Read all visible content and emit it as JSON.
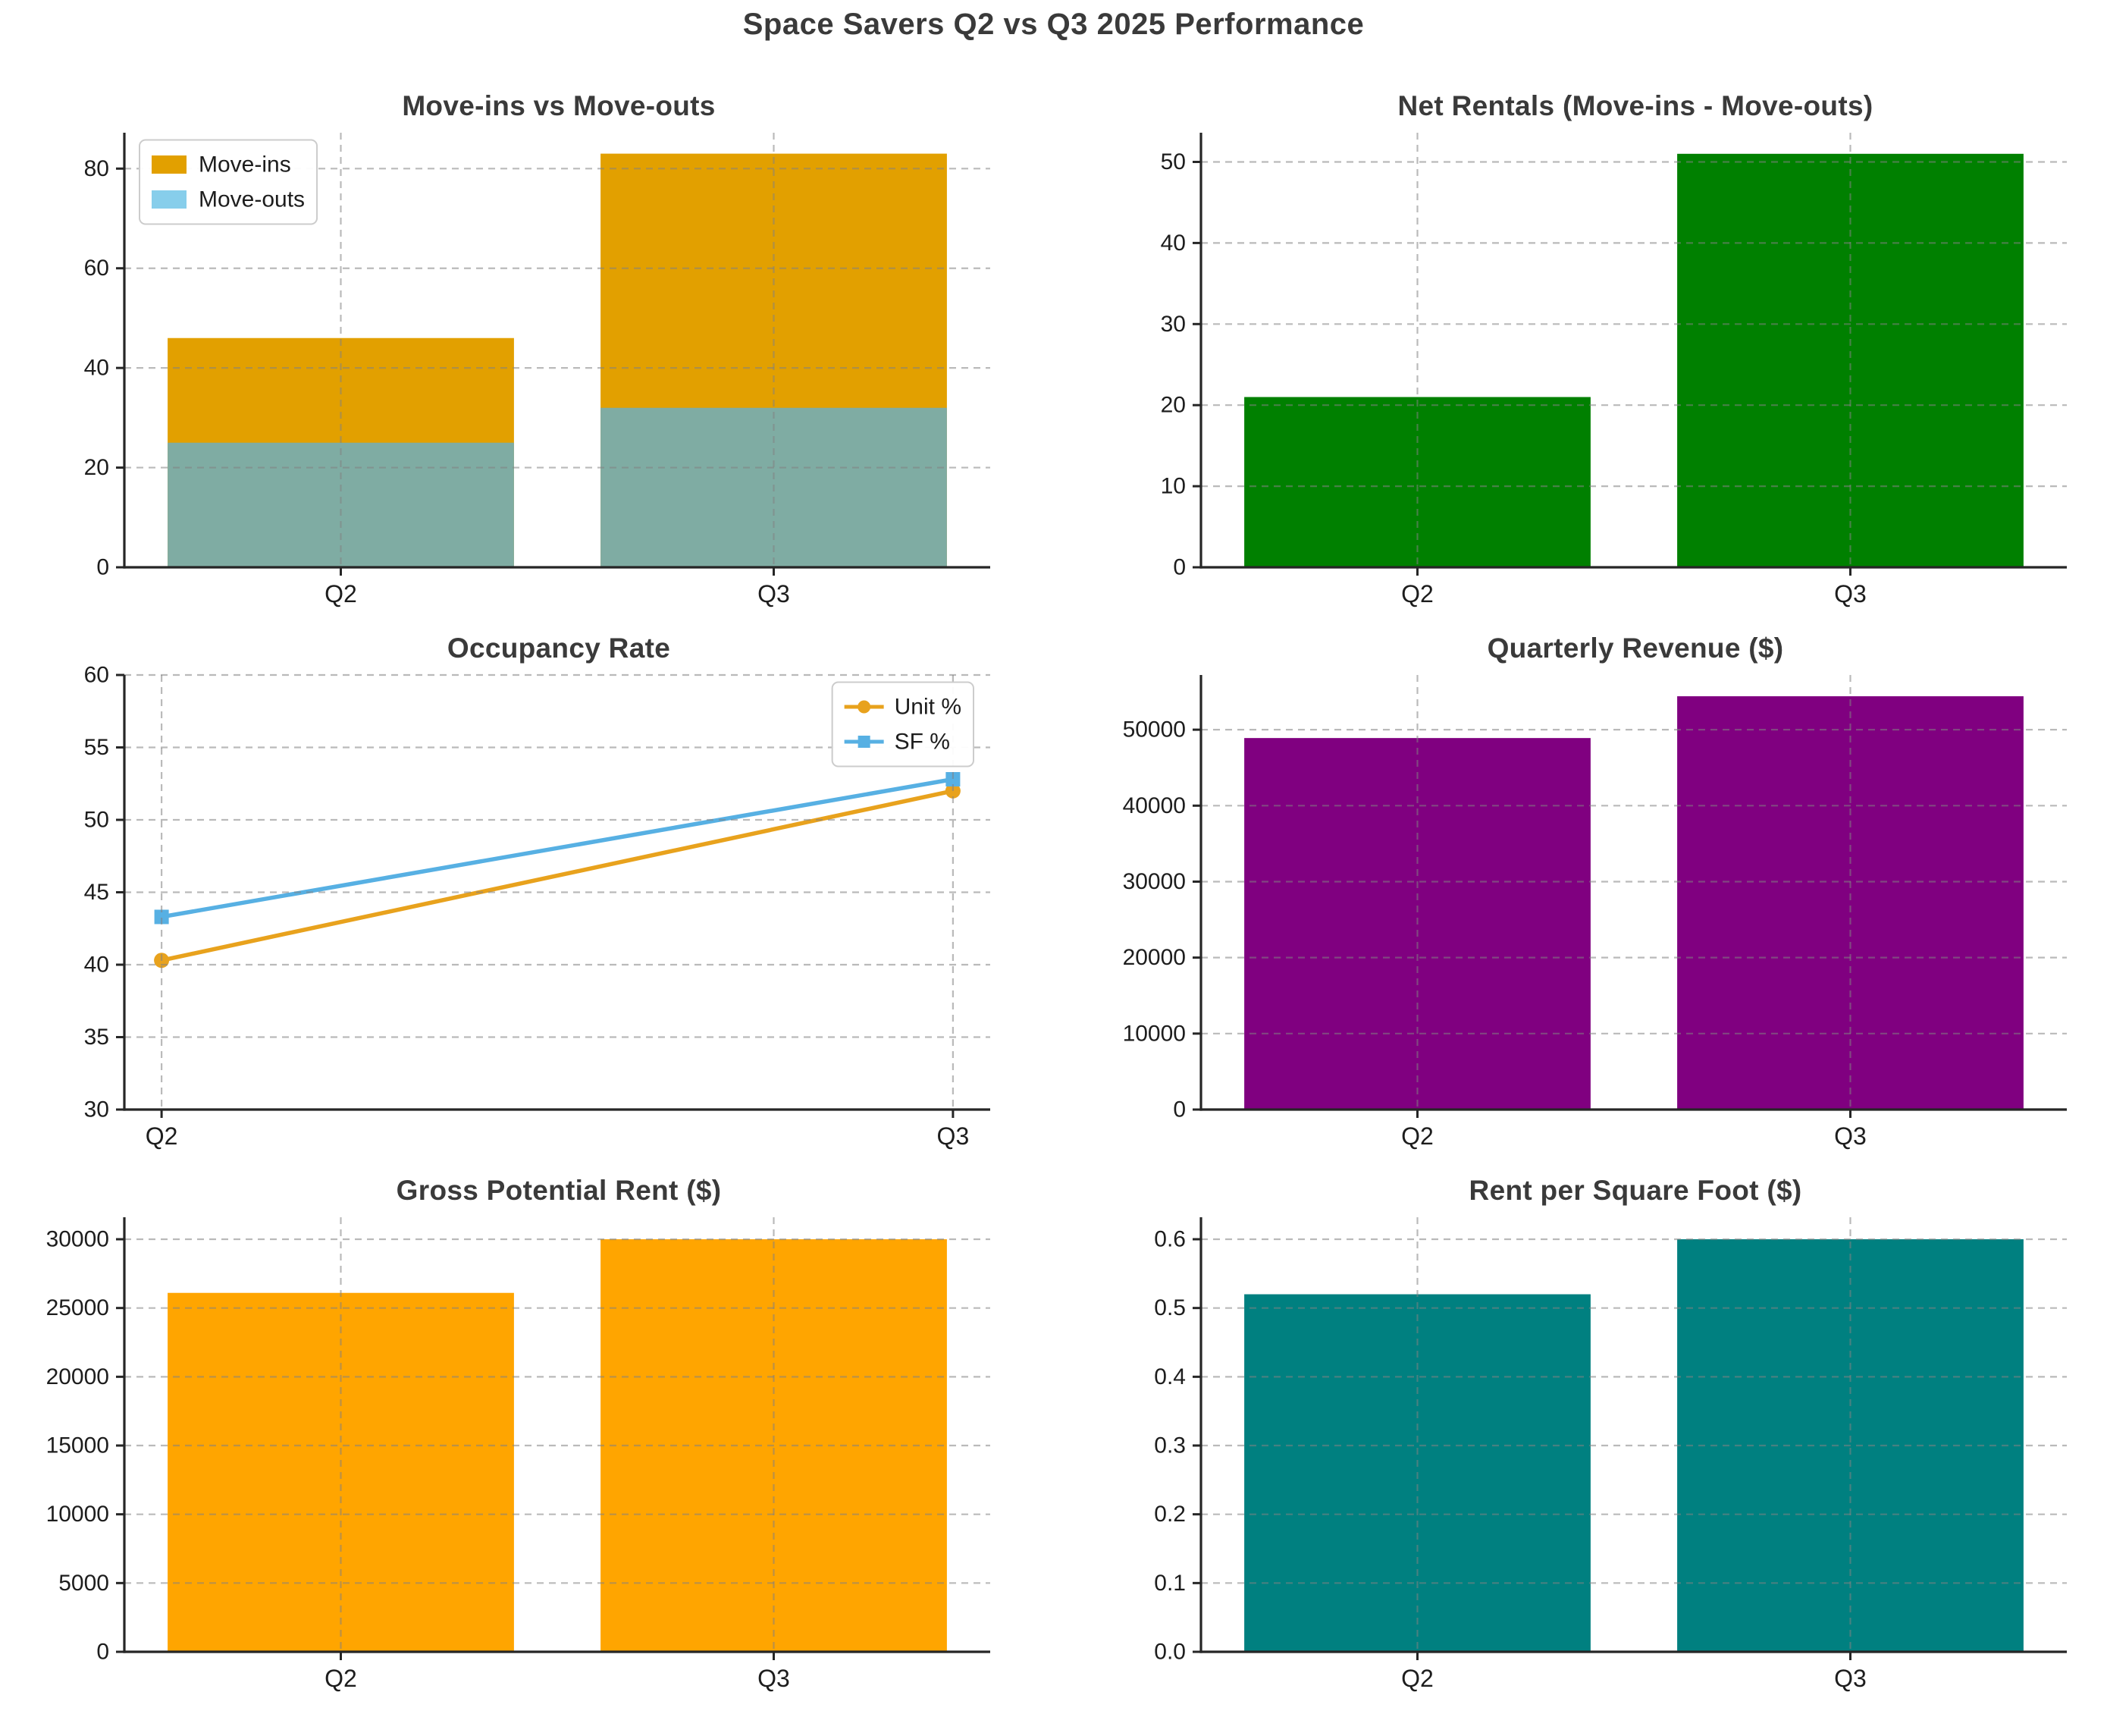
{
  "page_title": "Space Savers Q2 vs Q3 2025 Performance",
  "style": {
    "background": "#ffffff",
    "title_color": "#3a3a3a",
    "tick_label_color": "#1d1d1d",
    "spine_color": "#262626",
    "grid_color": "rgba(130,130,130,0.55)",
    "legend_border_color": "#cccccc",
    "legend_bg_color": "#ffffff"
  },
  "chart_data": [
    {
      "type": "overlap-bar",
      "title": "Move-ins vs Move-outs",
      "categories": [
        "Q2",
        "Q3"
      ],
      "ylim": [
        0,
        87.2
      ],
      "yticks": [
        0,
        20,
        40,
        60,
        80
      ],
      "ytick_labels": [
        "0",
        "20",
        "40",
        "60",
        "80"
      ],
      "series": [
        {
          "name": "Move-ins",
          "color": "#E2A000",
          "values": [
            46,
            83
          ]
        },
        {
          "name": "Move-outs",
          "color": "#87CEEB",
          "overlap_color": "#7FACA3",
          "values": [
            25,
            32
          ]
        }
      ],
      "legend": {
        "position": "top-left"
      },
      "grid": true
    },
    {
      "type": "bar",
      "title": "Net Rentals (Move-ins - Move-outs)",
      "categories": [
        "Q2",
        "Q3"
      ],
      "ylim": [
        0,
        53.6
      ],
      "yticks": [
        0,
        10,
        20,
        30,
        40,
        50
      ],
      "ytick_labels": [
        "0",
        "10",
        "20",
        "30",
        "40",
        "50"
      ],
      "series": [
        {
          "name": "Net Rentals",
          "color": "#008000",
          "values": [
            21,
            51
          ]
        }
      ],
      "legend": null,
      "grid": true
    },
    {
      "type": "line",
      "title": "Occupancy Rate",
      "categories": [
        "Q2",
        "Q3"
      ],
      "ylim": [
        30,
        60
      ],
      "yticks": [
        30,
        35,
        40,
        45,
        50,
        55,
        60
      ],
      "ytick_labels": [
        "30",
        "35",
        "40",
        "45",
        "50",
        "55",
        "60"
      ],
      "series": [
        {
          "name": "Unit %",
          "color": "#E8A21D",
          "marker": "circle",
          "values": [
            40.3,
            52.0
          ]
        },
        {
          "name": "SF %",
          "color": "#57B0E3",
          "marker": "square",
          "values": [
            43.3,
            52.8
          ]
        }
      ],
      "legend": {
        "position": "top-right"
      },
      "grid": true
    },
    {
      "type": "bar",
      "title": "Quarterly Revenue ($)",
      "categories": [
        "Q2",
        "Q3"
      ],
      "ylim": [
        0,
        57200
      ],
      "yticks": [
        0,
        10000,
        20000,
        30000,
        40000,
        50000
      ],
      "ytick_labels": [
        "0",
        "10000",
        "20000",
        "30000",
        "40000",
        "50000"
      ],
      "series": [
        {
          "name": "Revenue",
          "color": "#800080",
          "values": [
            48900,
            54400
          ]
        }
      ],
      "legend": null,
      "grid": true
    },
    {
      "type": "bar",
      "title": "Gross Potential Rent ($)",
      "categories": [
        "Q2",
        "Q3"
      ],
      "ylim": [
        0,
        31600
      ],
      "yticks": [
        0,
        5000,
        10000,
        15000,
        20000,
        25000,
        30000
      ],
      "ytick_labels": [
        "0",
        "5000",
        "10000",
        "15000",
        "20000",
        "25000",
        "30000"
      ],
      "series": [
        {
          "name": "Gross Potential Rent",
          "color": "#FFA500",
          "values": [
            26100,
            30000
          ]
        }
      ],
      "legend": null,
      "grid": true
    },
    {
      "type": "bar",
      "title": "Rent per Square Foot ($)",
      "categories": [
        "Q2",
        "Q3"
      ],
      "ylim": [
        0,
        0.632
      ],
      "yticks": [
        0,
        0.1,
        0.2,
        0.3,
        0.4,
        0.5,
        0.6
      ],
      "ytick_labels": [
        "0.0",
        "0.1",
        "0.2",
        "0.3",
        "0.4",
        "0.5",
        "0.6"
      ],
      "series": [
        {
          "name": "Rent per SF",
          "color": "#008080",
          "values": [
            0.52,
            0.6
          ]
        }
      ],
      "legend": null,
      "grid": true
    }
  ]
}
